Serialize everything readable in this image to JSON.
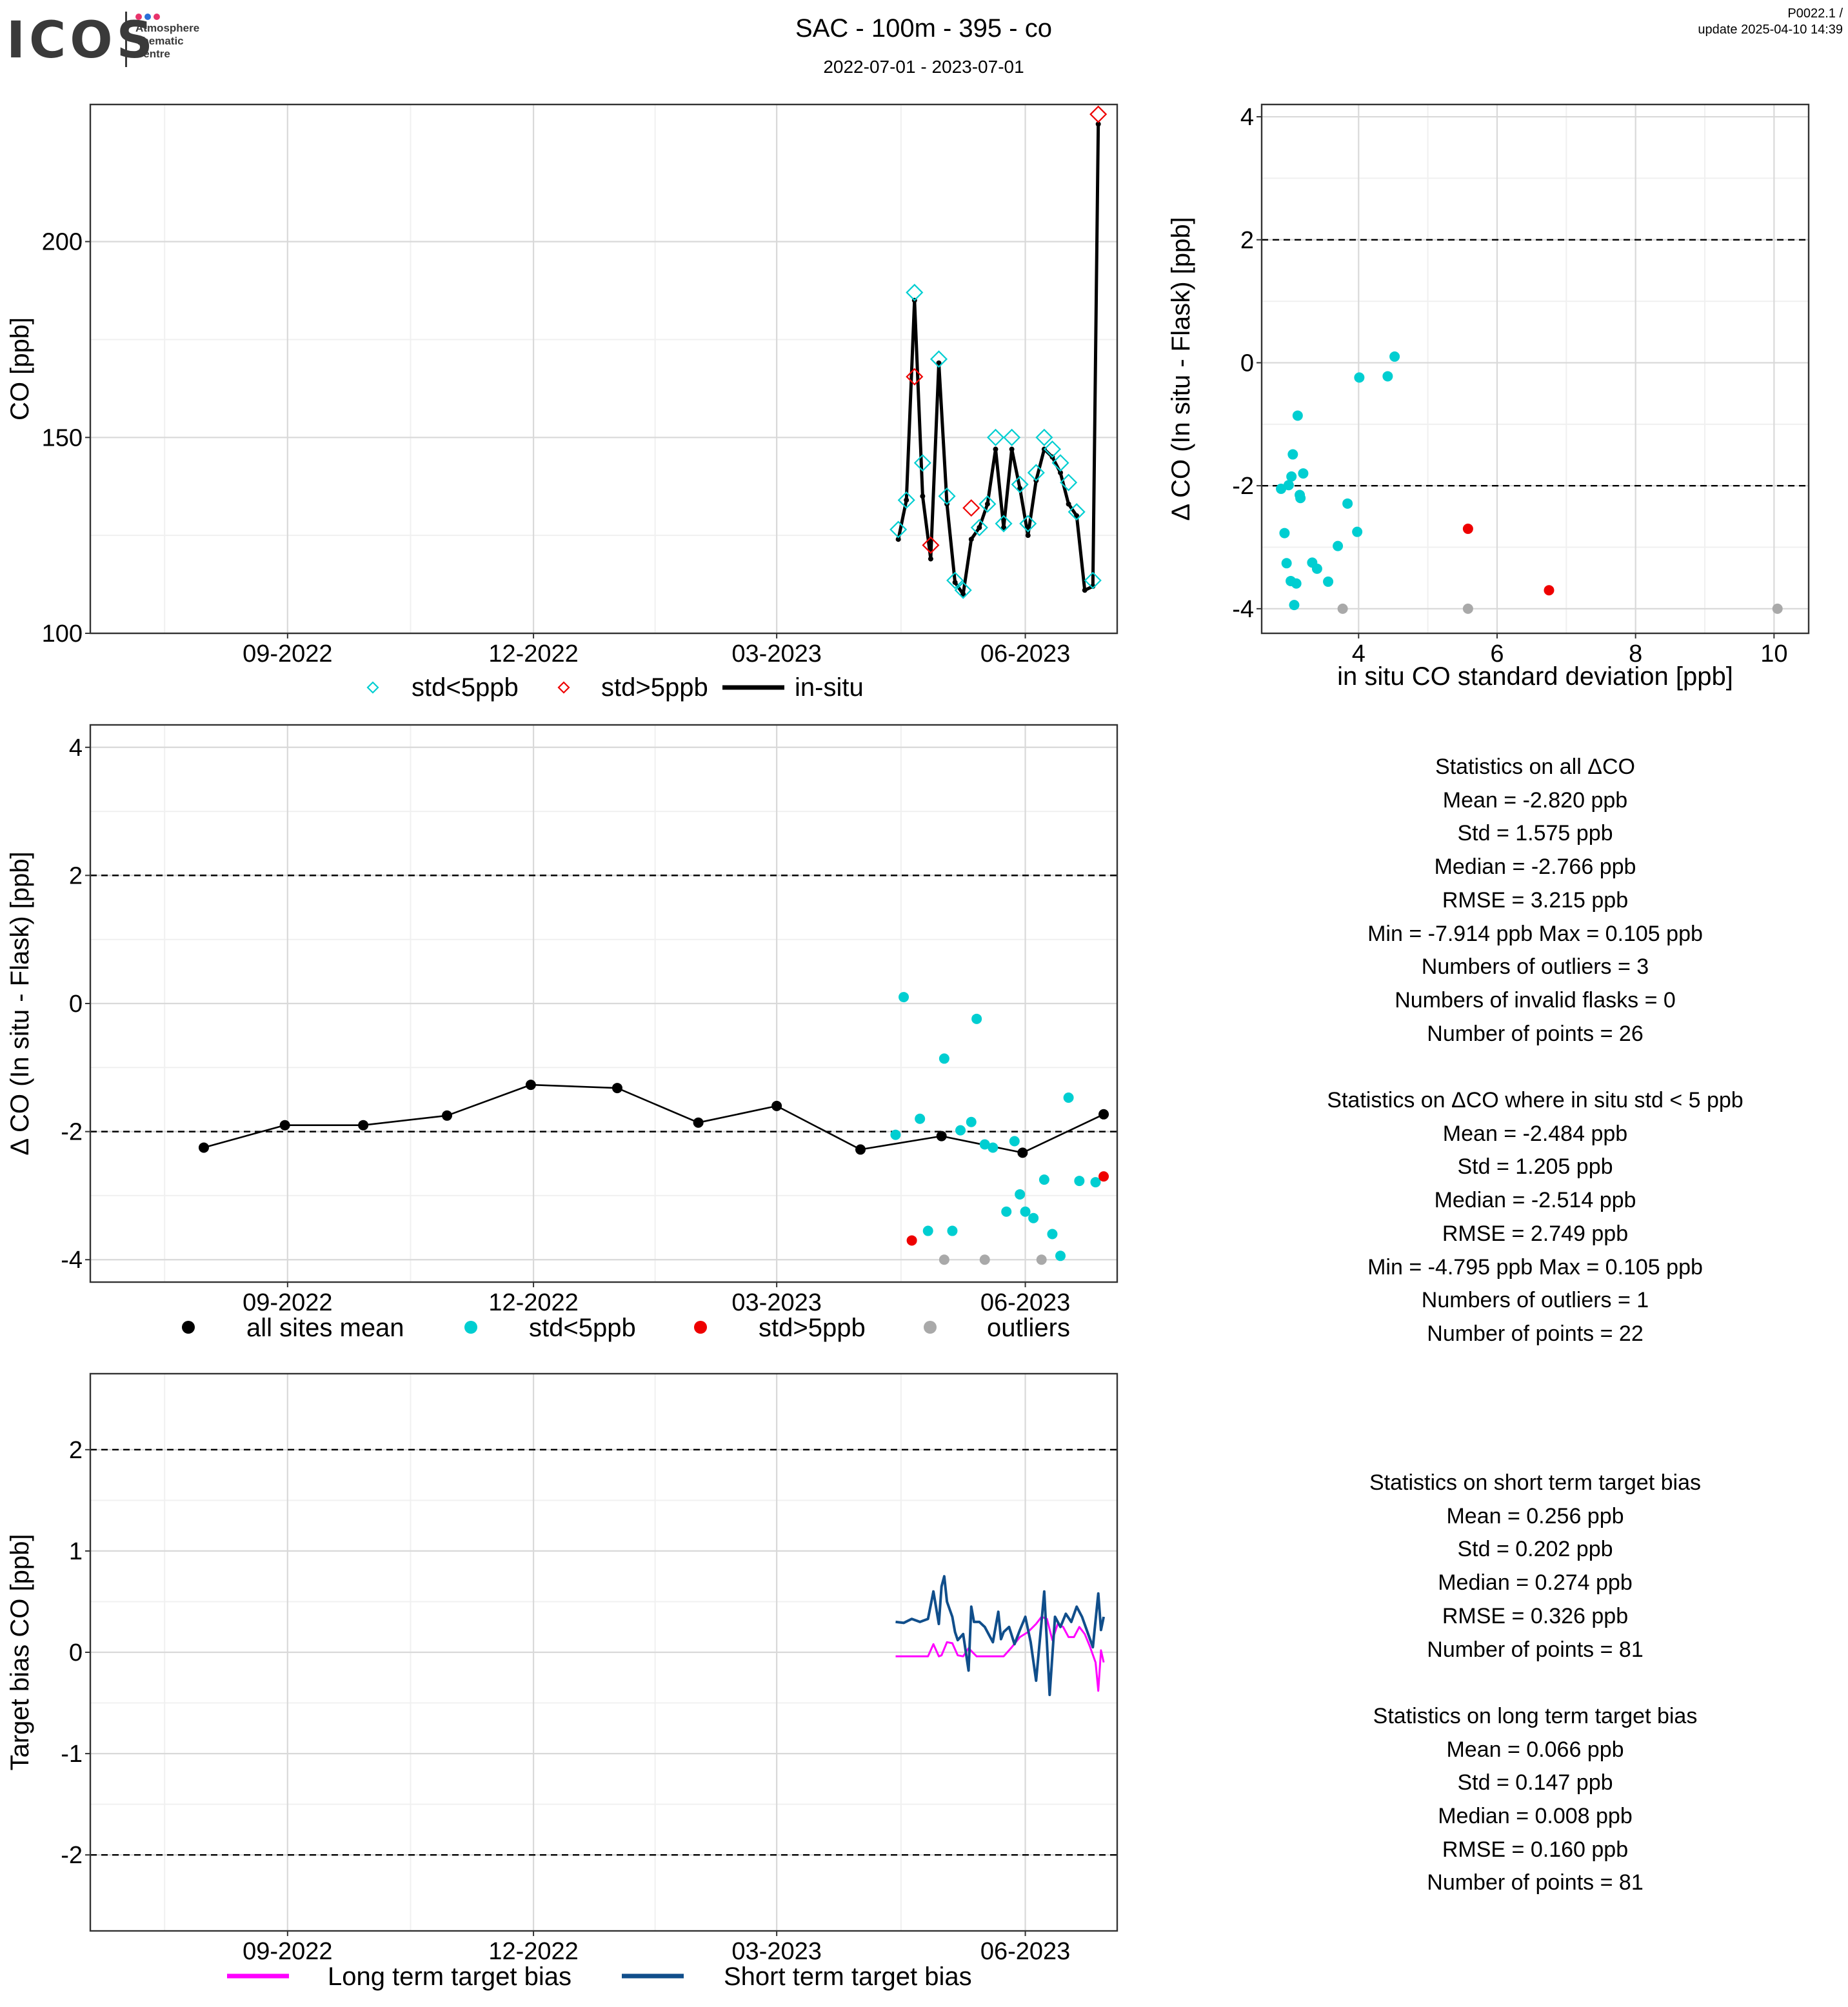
{
  "header": {
    "logo_text": "ICOS",
    "logo_sub": [
      "Atmosphere",
      "Thematic",
      "Centre"
    ],
    "logo_dot_colors": [
      "#e8336b",
      "#2b6fd8",
      "#e8336b"
    ],
    "title": "SAC - 100m - 395 - co",
    "period": "2022-07-01 - 2023-07-01",
    "version": "P0022.1 /",
    "update": "update  2025-04-10 14:39"
  },
  "colors": {
    "cyan": "#00CED1",
    "red": "#EE0000",
    "grey": "#A9A9A9",
    "black": "#000000",
    "magenta": "#FF00FF",
    "navy": "#104E8B",
    "grid_major": "#D9D9D9",
    "grid_minor": "#F0F0F0"
  },
  "chart_data": [
    {
      "id": "co_timeseries",
      "type": "scatter",
      "title": "",
      "xlabel": "",
      "ylabel": "CO [ppb]",
      "xlim": [
        "2022-06-20",
        "2023-07-05"
      ],
      "ylim": [
        100,
        235
      ],
      "x_ticks": [
        {
          "date": "2022-09-01",
          "label": "09-2022"
        },
        {
          "date": "2022-12-01",
          "label": "12-2022"
        },
        {
          "date": "2023-03-01",
          "label": "03-2023"
        },
        {
          "date": "2023-06-01",
          "label": "06-2023"
        }
      ],
      "y_ticks": [
        {
          "value": 100,
          "label": "100"
        },
        {
          "value": 150,
          "label": "150"
        },
        {
          "value": 200,
          "label": "200"
        }
      ],
      "legend": [
        {
          "label": "std<5ppb",
          "marker": "diamond",
          "color": "#00CED1"
        },
        {
          "label": "std>5ppb",
          "marker": "diamond",
          "color": "#EE0000"
        },
        {
          "label": "in-situ",
          "marker": "line",
          "color": "#000000"
        }
      ],
      "legend_position": "bottom",
      "series": [
        {
          "name": "in-situ",
          "x": [
            "2023-04-15",
            "2023-04-18",
            "2023-04-21",
            "2023-04-24",
            "2023-04-27",
            "2023-04-30",
            "2023-05-03",
            "2023-05-06",
            "2023-05-09",
            "2023-05-12",
            "2023-05-15",
            "2023-05-18",
            "2023-05-21",
            "2023-05-24",
            "2023-05-27",
            "2023-05-30",
            "2023-06-02",
            "2023-06-05",
            "2023-06-08",
            "2023-06-11",
            "2023-06-14",
            "2023-06-17",
            "2023-06-20",
            "2023-06-23",
            "2023-06-26",
            "2023-06-28"
          ],
          "values": [
            124,
            134,
            185,
            135,
            119,
            169,
            133,
            113,
            110,
            124,
            127,
            133,
            147,
            127,
            147,
            137,
            125,
            139,
            147,
            145,
            141,
            133,
            130,
            111,
            112,
            230
          ]
        },
        {
          "name": "std<5ppb",
          "x": [
            "2023-04-15",
            "2023-04-18",
            "2023-04-21",
            "2023-04-24",
            "2023-04-30",
            "2023-05-03",
            "2023-05-06",
            "2023-05-09",
            "2023-05-15",
            "2023-05-18",
            "2023-05-21",
            "2023-05-24",
            "2023-05-27",
            "2023-05-30",
            "2023-06-02",
            "2023-06-05",
            "2023-06-08",
            "2023-06-11",
            "2023-06-14",
            "2023-06-17",
            "2023-06-20",
            "2023-06-26"
          ],
          "values": [
            126.5,
            134,
            187,
            143.5,
            170,
            135,
            113.5,
            111,
            127,
            133,
            150,
            128,
            150,
            138,
            128,
            141,
            150,
            147,
            143.5,
            138.5,
            131,
            113.5
          ]
        },
        {
          "name": "std>5ppb",
          "x": [
            "2023-04-21",
            "2023-04-27",
            "2023-05-12",
            "2023-06-28"
          ],
          "values": [
            165.5,
            122.5,
            132,
            232.5
          ]
        }
      ]
    },
    {
      "id": "delta_vs_std",
      "type": "scatter",
      "title": "",
      "xlabel": "in situ CO standard deviation [ppb]",
      "ylabel": "Δ CO (In situ - Flask) [ppb]",
      "xlim": [
        2.6,
        10.5
      ],
      "ylim": [
        -4.4,
        4.2
      ],
      "x_ticks": [
        {
          "value": 4,
          "label": "4"
        },
        {
          "value": 6,
          "label": "6"
        },
        {
          "value": 8,
          "label": "8"
        },
        {
          "value": 10,
          "label": "10"
        }
      ],
      "y_ticks": [
        {
          "value": -4,
          "label": "-4"
        },
        {
          "value": -2,
          "label": "-2"
        },
        {
          "value": 0,
          "label": "0"
        },
        {
          "value": 2,
          "label": "2"
        },
        {
          "value": 4,
          "label": "4"
        }
      ],
      "hlines": [
        -2,
        2
      ],
      "series": [
        {
          "name": "std<5ppb",
          "x": [
            2.88,
            2.93,
            2.96,
            2.99,
            3.02,
            3.03,
            3.05,
            3.07,
            3.1,
            3.12,
            3.15,
            3.16,
            3.2,
            3.33,
            3.4,
            3.56,
            3.7,
            3.84,
            3.98,
            4.01,
            4.42,
            4.52
          ],
          "values": [
            -2.05,
            -2.77,
            -3.26,
            -1.99,
            -3.55,
            -1.85,
            -1.49,
            -3.94,
            -3.59,
            -0.86,
            -2.15,
            -2.2,
            -1.8,
            -3.25,
            -3.35,
            -3.56,
            -2.98,
            -2.29,
            -2.75,
            -0.24,
            -0.22,
            0.1
          ]
        },
        {
          "name": "std>5ppb",
          "x": [
            5.58,
            6.75
          ],
          "values": [
            -2.7,
            -3.7
          ]
        },
        {
          "name": "outliers",
          "x": [
            3.77,
            5.58,
            10.05
          ],
          "values": [
            -4.0,
            -4.0,
            -4.0
          ]
        }
      ]
    },
    {
      "id": "delta_timeseries",
      "type": "scatter",
      "title": "",
      "xlabel": "",
      "ylabel": "Δ CO (In situ - Flask) [ppb]",
      "xlim": [
        "2022-06-20",
        "2023-07-05"
      ],
      "ylim": [
        -4.35,
        4.35
      ],
      "x_ticks": [
        {
          "date": "2022-09-01",
          "label": "09-2022"
        },
        {
          "date": "2022-12-01",
          "label": "12-2022"
        },
        {
          "date": "2023-03-01",
          "label": "03-2023"
        },
        {
          "date": "2023-06-01",
          "label": "06-2023"
        }
      ],
      "y_ticks": [
        {
          "value": -4,
          "label": "-4"
        },
        {
          "value": -2,
          "label": "-2"
        },
        {
          "value": 0,
          "label": "0"
        },
        {
          "value": 2,
          "label": "2"
        },
        {
          "value": 4,
          "label": "4"
        }
      ],
      "hlines": [
        -2,
        2
      ],
      "legend": [
        {
          "label": "all sites mean",
          "color": "#000000"
        },
        {
          "label": "std<5ppb",
          "color": "#00CED1"
        },
        {
          "label": "std>5ppb",
          "color": "#EE0000"
        },
        {
          "label": "outliers",
          "color": "#A9A9A9"
        }
      ],
      "legend_position": "bottom",
      "series": [
        {
          "name": "all sites mean",
          "x": [
            "2022-08-01",
            "2022-08-31",
            "2022-09-29",
            "2022-10-30",
            "2022-11-30",
            "2023-01-01",
            "2023-01-31",
            "2023-03-01",
            "2023-04-01",
            "2023-05-01",
            "2023-05-31",
            "2023-06-30"
          ],
          "values": [
            -2.25,
            -1.9,
            -1.9,
            -1.75,
            -1.27,
            -1.32,
            -1.86,
            -1.6,
            -2.28,
            -2.07,
            -2.33,
            -1.73
          ]
        },
        {
          "name": "std<5ppb",
          "x": [
            "2023-04-14",
            "2023-04-17",
            "2023-04-23",
            "2023-04-26",
            "2023-05-02",
            "2023-05-05",
            "2023-05-08",
            "2023-05-12",
            "2023-05-14",
            "2023-05-17",
            "2023-05-20",
            "2023-05-25",
            "2023-05-28",
            "2023-05-30",
            "2023-06-01",
            "2023-06-04",
            "2023-06-08",
            "2023-06-11",
            "2023-06-14",
            "2023-06-17",
            "2023-06-21",
            "2023-06-27"
          ],
          "values": [
            -2.05,
            0.1,
            -1.8,
            -3.55,
            -0.86,
            -3.55,
            -1.98,
            -1.85,
            -0.24,
            -2.2,
            -2.25,
            -3.25,
            -2.15,
            -2.98,
            -3.25,
            -3.35,
            -2.75,
            -3.6,
            -3.94,
            -1.47,
            -2.77,
            -2.79
          ]
        },
        {
          "name": "std>5ppb",
          "x": [
            "2023-04-20",
            "2023-06-30"
          ],
          "values": [
            -3.7,
            -2.7
          ]
        },
        {
          "name": "outliers",
          "x": [
            "2023-05-02",
            "2023-05-17",
            "2023-06-07"
          ],
          "values": [
            -4.0,
            -4.0,
            -4.0
          ]
        }
      ]
    },
    {
      "id": "target_bias",
      "type": "line",
      "title": "",
      "xlabel": "",
      "ylabel": "Target bias CO [ppb]",
      "xlim": [
        "2022-06-20",
        "2023-07-05"
      ],
      "ylim": [
        -2.75,
        2.75
      ],
      "x_ticks": [
        {
          "date": "2022-09-01",
          "label": "09-2022"
        },
        {
          "date": "2022-12-01",
          "label": "12-2022"
        },
        {
          "date": "2023-03-01",
          "label": "03-2023"
        },
        {
          "date": "2023-06-01",
          "label": "06-2023"
        }
      ],
      "y_ticks": [
        {
          "value": -2,
          "label": "-2"
        },
        {
          "value": -1,
          "label": "-1"
        },
        {
          "value": 0,
          "label": "0"
        },
        {
          "value": 1,
          "label": "1"
        },
        {
          "value": 2,
          "label": "2"
        }
      ],
      "hlines": [
        -2,
        2
      ],
      "legend": [
        {
          "label": "Long term target bias",
          "color": "#FF00FF"
        },
        {
          "label": "Short term target bias",
          "color": "#104E8B"
        }
      ],
      "legend_position": "bottom",
      "series": [
        {
          "name": "Long term target bias",
          "x": [
            "2023-04-14",
            "2023-04-20",
            "2023-04-26",
            "2023-04-28",
            "2023-04-30",
            "2023-05-01",
            "2023-05-03",
            "2023-05-05",
            "2023-05-07",
            "2023-05-09",
            "2023-05-11",
            "2023-05-14",
            "2023-05-19",
            "2023-05-24",
            "2023-05-27",
            "2023-05-30",
            "2023-06-02",
            "2023-06-05",
            "2023-06-07",
            "2023-06-09",
            "2023-06-11",
            "2023-06-13",
            "2023-06-15",
            "2023-06-17",
            "2023-06-19",
            "2023-06-21",
            "2023-06-23",
            "2023-06-25",
            "2023-06-27",
            "2023-06-28",
            "2023-06-29",
            "2023-06-30"
          ],
          "values": [
            -0.04,
            -0.04,
            -0.04,
            0.08,
            -0.04,
            -0.03,
            0.1,
            0.09,
            -0.03,
            -0.04,
            0.04,
            -0.04,
            -0.04,
            -0.04,
            0.05,
            0.15,
            0.2,
            0.28,
            0.35,
            0.33,
            0.12,
            0.28,
            0.25,
            0.15,
            0.15,
            0.25,
            0.18,
            0.05,
            -0.1,
            -0.38,
            0.02,
            -0.1
          ]
        },
        {
          "name": "Short term target bias",
          "x": [
            "2023-04-14",
            "2023-04-17",
            "2023-04-20",
            "2023-04-23",
            "2023-04-26",
            "2023-04-28",
            "2023-04-30",
            "2023-05-01",
            "2023-05-02",
            "2023-05-03",
            "2023-05-05",
            "2023-05-06",
            "2023-05-07",
            "2023-05-09",
            "2023-05-11",
            "2023-05-12",
            "2023-05-13",
            "2023-05-15",
            "2023-05-17",
            "2023-05-20",
            "2023-05-22",
            "2023-05-23",
            "2023-05-24",
            "2023-05-26",
            "2023-05-28",
            "2023-05-30",
            "2023-06-01",
            "2023-06-03",
            "2023-06-05",
            "2023-06-07",
            "2023-06-08",
            "2023-06-10",
            "2023-06-12",
            "2023-06-14",
            "2023-06-16",
            "2023-06-18",
            "2023-06-20",
            "2023-06-22",
            "2023-06-24",
            "2023-06-26",
            "2023-06-28",
            "2023-06-29",
            "2023-06-30"
          ],
          "values": [
            0.3,
            0.29,
            0.33,
            0.3,
            0.33,
            0.6,
            0.28,
            0.65,
            0.75,
            0.5,
            0.35,
            0.2,
            0.12,
            0.18,
            -0.18,
            0.45,
            0.3,
            0.3,
            0.25,
            0.1,
            0.4,
            0.13,
            0.2,
            0.25,
            0.08,
            0.22,
            0.35,
            0.1,
            -0.28,
            0.3,
            0.6,
            -0.42,
            0.35,
            0.25,
            0.38,
            0.3,
            0.45,
            0.35,
            0.2,
            0.05,
            0.58,
            0.22,
            0.35
          ]
        }
      ]
    }
  ],
  "stats_top": {
    "heading1": "Statistics on all ΔCO",
    "lines1": [
      "Mean =  -2.820 ppb",
      "Std =  1.575 ppb",
      "Median =  -2.766 ppb",
      "RMSE =  3.215 ppb",
      "Min =  -7.914 ppb Max =  0.105 ppb",
      "Numbers of outliers =  3",
      "Numbers of invalid flasks =  0",
      "Number of points =  26"
    ],
    "heading2": "Statistics on ΔCO where in situ std < 5 ppb",
    "lines2": [
      "Mean =  -2.484 ppb",
      "Std =  1.205 ppb",
      "Median =  -2.514 ppb",
      "RMSE =  2.749 ppb",
      "Min =  -4.795 ppb Max =  0.105 ppb",
      "Numbers of outliers =  1",
      "Number of points =  22"
    ]
  },
  "stats_bottom": {
    "heading1": "Statistics on short term target bias",
    "lines1": [
      "Mean =  0.256 ppb",
      "Std =  0.202 ppb",
      "Median =  0.274 ppb",
      "RMSE =  0.326 ppb",
      "Number of points =  81"
    ],
    "heading2": "Statistics on long term target bias",
    "lines2": [
      "Mean =  0.066 ppb",
      "Std =  0.147 ppb",
      "Median =  0.008 ppb",
      "RMSE =  0.160 ppb",
      "Number of points =  81"
    ]
  }
}
